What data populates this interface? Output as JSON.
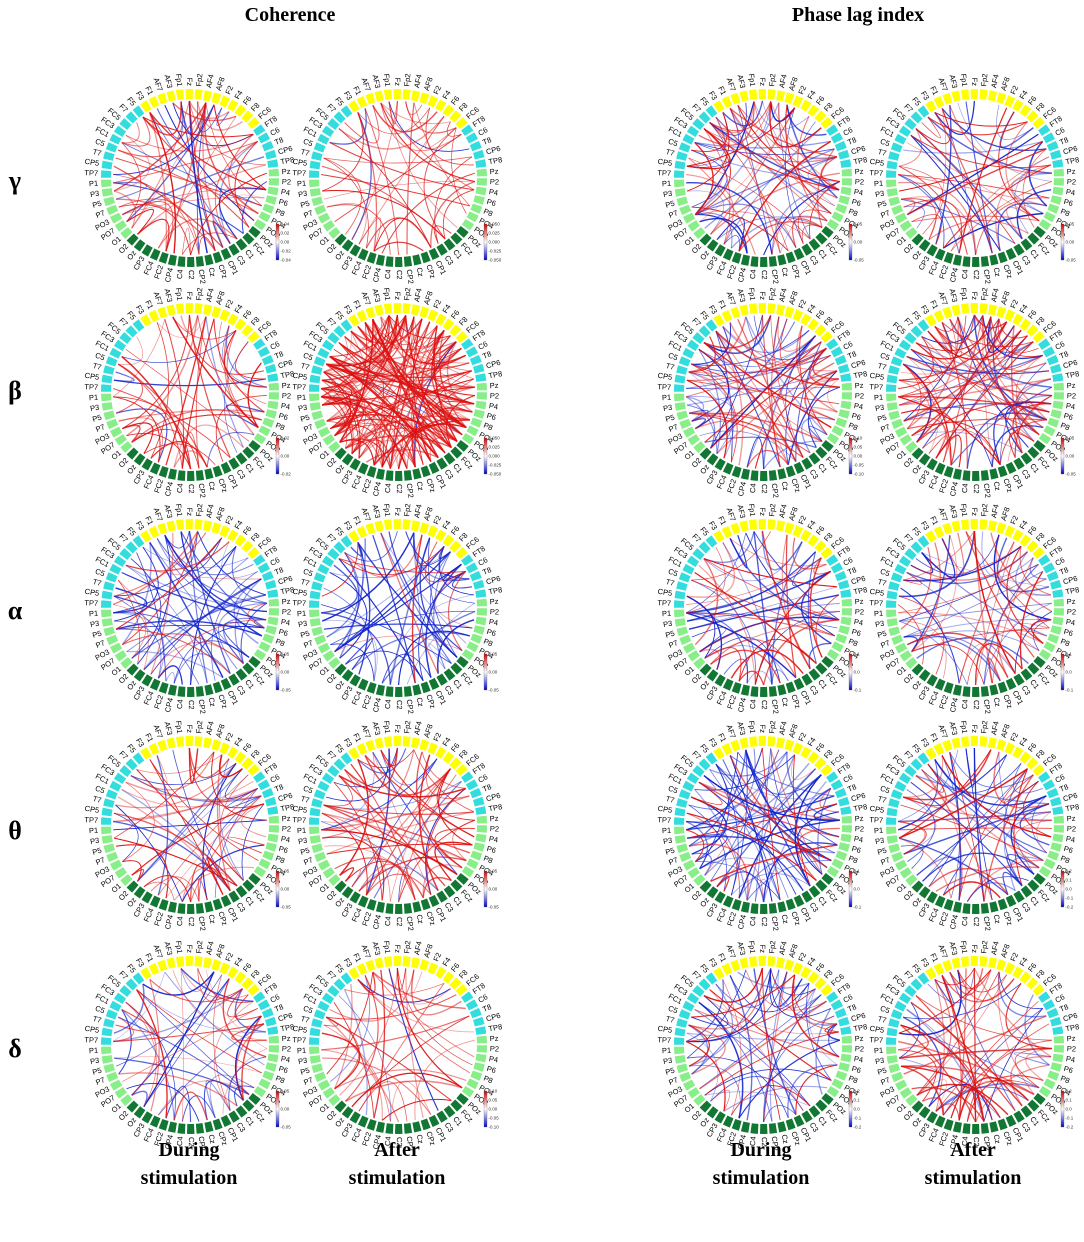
{
  "sections": [
    {
      "id": "coherence",
      "title": "Coherence"
    },
    {
      "id": "pli",
      "title": "Phase lag index"
    }
  ],
  "bands": [
    {
      "id": "gamma",
      "symbol": "γ"
    },
    {
      "id": "beta",
      "symbol": "β"
    },
    {
      "id": "alpha",
      "symbol": "α"
    },
    {
      "id": "theta",
      "symbol": "θ"
    },
    {
      "id": "delta",
      "symbol": "δ"
    }
  ],
  "column_labels": [
    {
      "line1": "During",
      "line2": "stimulation"
    },
    {
      "line1": "After",
      "line2": "stimulation"
    },
    {
      "line1": "During",
      "line2": "stimulation"
    },
    {
      "line1": "After",
      "line2": "stimulation"
    }
  ],
  "electrodes": {
    "frontal": [
      "Fp1",
      "Fz",
      "Fp2",
      "AF4",
      "AF8",
      "F2",
      "F4",
      "F6",
      "F8",
      "FC6"
    ],
    "frontal_left": [
      "AF3",
      "AF7",
      "F1",
      "F3",
      "F5",
      "F7",
      "FC5",
      "FC3",
      "FC1"
    ],
    "temporal_right": [
      "FT8",
      "C6",
      "T8",
      "CP6",
      "TP8"
    ],
    "temporal_left": [
      "C5",
      "T7",
      "CP5",
      "TP7"
    ],
    "parietal_right": [
      "Pz",
      "P2",
      "P4",
      "P6",
      "P8",
      "PO4",
      "PO8"
    ],
    "parietal_left": [
      "P1",
      "P3",
      "P5",
      "P7",
      "PO3",
      "PO7",
      "O1"
    ],
    "central": [
      "POz",
      "FCz",
      "C1",
      "C3",
      "CP1",
      "CPz",
      "Cz",
      "CP2",
      "C2",
      "C4",
      "CP4",
      "FC2",
      "FC4",
      "CP3",
      "Oz",
      "O2"
    ]
  },
  "group_colors": {
    "frontal": "#ffff00",
    "temporal": "#33dddd",
    "parietal": "#88ee88",
    "central": "#117733"
  },
  "panels": [
    {
      "band": "gamma",
      "section": "coherence",
      "condition": "During stimulation",
      "colorbar_ticks": [
        "0.04",
        "0.02",
        "0.00",
        "-0.02",
        "-0.04"
      ],
      "red_edges": 50,
      "blue_edges": 20,
      "seed": 11
    },
    {
      "band": "gamma",
      "section": "coherence",
      "condition": "After stimulation",
      "colorbar_ticks": [
        "0.050",
        "0.025",
        "0.000",
        "-0.025",
        "-0.050"
      ],
      "red_edges": 45,
      "blue_edges": 3,
      "seed": 12
    },
    {
      "band": "gamma",
      "section": "pli",
      "condition": "During stimulation",
      "colorbar_ticks": [
        "0.05",
        "0.00",
        "-0.05"
      ],
      "red_edges": 45,
      "blue_edges": 40,
      "seed": 13
    },
    {
      "band": "gamma",
      "section": "pli",
      "condition": "After stimulation",
      "colorbar_ticks": [
        "0.05",
        "0.00",
        "-0.05"
      ],
      "red_edges": 35,
      "blue_edges": 25,
      "seed": 14
    },
    {
      "band": "beta",
      "section": "coherence",
      "condition": "During stimulation",
      "colorbar_ticks": [
        "0.02",
        "0.00",
        "-0.02"
      ],
      "red_edges": 45,
      "blue_edges": 10,
      "seed": 21
    },
    {
      "band": "beta",
      "section": "coherence",
      "condition": "After stimulation",
      "colorbar_ticks": [
        "0.050",
        "0.025",
        "0.000",
        "-0.025",
        "-0.050"
      ],
      "red_edges": 180,
      "blue_edges": 4,
      "seed": 22
    },
    {
      "band": "beta",
      "section": "pli",
      "condition": "During stimulation",
      "colorbar_ticks": [
        "0.10",
        "0.05",
        "0.00",
        "-0.05",
        "-0.10"
      ],
      "red_edges": 45,
      "blue_edges": 45,
      "seed": 23
    },
    {
      "band": "beta",
      "section": "pli",
      "condition": "After stimulation",
      "colorbar_ticks": [
        "0.05",
        "0.00",
        "-0.05"
      ],
      "red_edges": 70,
      "blue_edges": 30,
      "seed": 24
    },
    {
      "band": "alpha",
      "section": "coherence",
      "condition": "During stimulation",
      "colorbar_ticks": [
        "0.05",
        "0.00",
        "-0.05"
      ],
      "red_edges": 15,
      "blue_edges": 55,
      "seed": 31
    },
    {
      "band": "alpha",
      "section": "coherence",
      "condition": "After stimulation",
      "colorbar_ticks": [
        "0.05",
        "0.00",
        "-0.05"
      ],
      "red_edges": 10,
      "blue_edges": 55,
      "seed": 32
    },
    {
      "band": "alpha",
      "section": "pli",
      "condition": "During stimulation",
      "colorbar_ticks": [
        "0.1",
        "0.0",
        "-0.1"
      ],
      "red_edges": 30,
      "blue_edges": 35,
      "seed": 33
    },
    {
      "band": "alpha",
      "section": "pli",
      "condition": "After stimulation",
      "colorbar_ticks": [
        "0.1",
        "0.0",
        "-0.1"
      ],
      "red_edges": 35,
      "blue_edges": 30,
      "seed": 34
    },
    {
      "band": "theta",
      "section": "coherence",
      "condition": "During stimulation",
      "colorbar_ticks": [
        "0.05",
        "0.00",
        "-0.05"
      ],
      "red_edges": 40,
      "blue_edges": 20,
      "seed": 41
    },
    {
      "band": "theta",
      "section": "coherence",
      "condition": "After stimulation",
      "colorbar_ticks": [
        "0.05",
        "0.00",
        "-0.05"
      ],
      "red_edges": 55,
      "blue_edges": 15,
      "seed": 42
    },
    {
      "band": "theta",
      "section": "pli",
      "condition": "During stimulation",
      "colorbar_ticks": [
        "0.1",
        "0.0",
        "-0.1"
      ],
      "red_edges": 20,
      "blue_edges": 60,
      "seed": 43
    },
    {
      "band": "theta",
      "section": "pli",
      "condition": "After stimulation",
      "colorbar_ticks": [
        "0.2",
        "0.1",
        "0.0",
        "-0.1",
        "-0.2"
      ],
      "red_edges": 30,
      "blue_edges": 40,
      "seed": 44
    },
    {
      "band": "delta",
      "section": "coherence",
      "condition": "During stimulation",
      "colorbar_ticks": [
        "0.05",
        "0.00",
        "-0.05"
      ],
      "red_edges": 30,
      "blue_edges": 30,
      "seed": 51
    },
    {
      "band": "delta",
      "section": "coherence",
      "condition": "After stimulation",
      "colorbar_ticks": [
        "0.10",
        "0.05",
        "0.00",
        "-0.05",
        "-0.10"
      ],
      "red_edges": 40,
      "blue_edges": 5,
      "seed": 52
    },
    {
      "band": "delta",
      "section": "pli",
      "condition": "During stimulation",
      "colorbar_ticks": [
        "0.2",
        "0.1",
        "0.0",
        "-0.1",
        "-0.2"
      ],
      "red_edges": 25,
      "blue_edges": 45,
      "seed": 53
    },
    {
      "band": "delta",
      "section": "pli",
      "condition": "After stimulation",
      "colorbar_ticks": [
        "0.2",
        "0.1",
        "0.0",
        "-0.1",
        "-0.2"
      ],
      "red_edges": 50,
      "blue_edges": 20,
      "seed": 54
    }
  ]
}
